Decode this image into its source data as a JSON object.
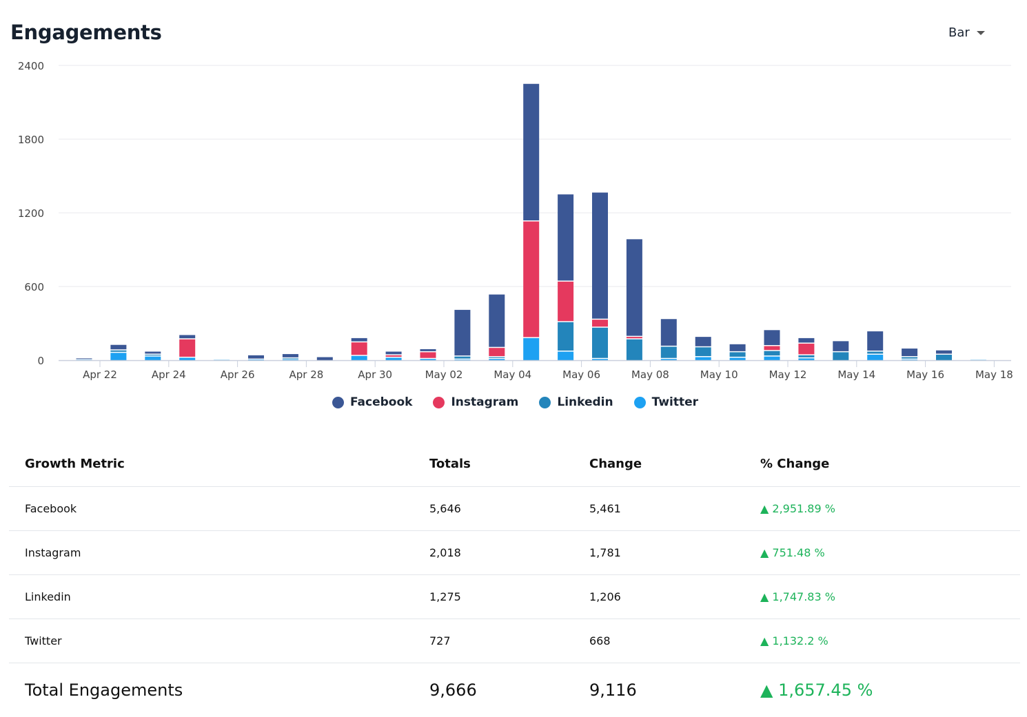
{
  "header": {
    "title": "Engagements",
    "chart_type_select": "Bar"
  },
  "chart_data": {
    "type": "bar",
    "stacked": true,
    "title": "Engagements",
    "ylim": [
      0,
      2400
    ],
    "yticks": [
      0,
      600,
      1200,
      1800,
      2400
    ],
    "grid": true,
    "legend_placement": "bottom",
    "categories": [
      "Apr 21",
      "Apr 22",
      "Apr 23",
      "Apr 24",
      "Apr 25",
      "Apr 26",
      "Apr 27",
      "Apr 28",
      "Apr 29",
      "Apr 30",
      "May 01",
      "May 02",
      "May 03",
      "May 04",
      "May 05",
      "May 06",
      "May 07",
      "May 08",
      "May 09",
      "May 10",
      "May 11",
      "May 12",
      "May 13",
      "May 14",
      "May 15",
      "May 16",
      "May 17"
    ],
    "xtick_labels": [
      "Apr 22",
      "Apr 24",
      "Apr 26",
      "Apr 28",
      "Apr 30",
      "May 02",
      "May 04",
      "May 06",
      "May 08",
      "May 10",
      "May 12",
      "May 14",
      "May 16",
      "May 18"
    ],
    "series": [
      {
        "name": "Twitter",
        "color": "#1da1f2",
        "values": [
          3,
          60,
          30,
          20,
          3,
          5,
          5,
          0,
          35,
          20,
          10,
          5,
          10,
          180,
          70,
          10,
          0,
          10,
          25,
          20,
          30,
          15,
          0,
          45,
          5,
          0,
          3
        ]
      },
      {
        "name": "Linkedin",
        "color": "#2385bb",
        "values": [
          0,
          20,
          15,
          0,
          0,
          0,
          10,
          0,
          0,
          0,
          0,
          25,
          15,
          0,
          240,
          255,
          170,
          100,
          80,
          45,
          45,
          25,
          65,
          25,
          20,
          45,
          0
        ]
      },
      {
        "name": "Instagram",
        "color": "#e5395e",
        "values": [
          0,
          0,
          0,
          150,
          0,
          0,
          0,
          0,
          110,
          20,
          55,
          0,
          75,
          950,
          330,
          65,
          20,
          0,
          0,
          0,
          40,
          95,
          0,
          0,
          0,
          0,
          0
        ]
      },
      {
        "name": "Facebook",
        "color": "#3b5795",
        "values": [
          12,
          45,
          25,
          35,
          0,
          35,
          35,
          25,
          35,
          30,
          25,
          380,
          435,
          1120,
          710,
          1035,
          795,
          225,
          85,
          65,
          130,
          45,
          90,
          165,
          70,
          35,
          0
        ]
      }
    ]
  },
  "legend": [
    {
      "label": "Facebook",
      "color": "#3b5795"
    },
    {
      "label": "Instagram",
      "color": "#e5395e"
    },
    {
      "label": "Linkedin",
      "color": "#2385bb"
    },
    {
      "label": "Twitter",
      "color": "#1da1f2"
    }
  ],
  "table": {
    "headers": [
      "Growth Metric",
      "Totals",
      "Change",
      "% Change"
    ],
    "rows": [
      {
        "metric": "Facebook",
        "totals": "5,646",
        "change": "5,461",
        "pct": "▲ 2,951.89 %"
      },
      {
        "metric": "Instagram",
        "totals": "2,018",
        "change": "1,781",
        "pct": "▲ 751.48 %"
      },
      {
        "metric": "Linkedin",
        "totals": "1,275",
        "change": "1,206",
        "pct": "▲ 1,747.83 %"
      },
      {
        "metric": "Twitter",
        "totals": "727",
        "change": "668",
        "pct": "▲ 1,132.2 %"
      }
    ],
    "total": {
      "metric": "Total Engagements",
      "totals": "9,666",
      "change": "9,116",
      "pct": "▲ 1,657.45 %"
    }
  }
}
